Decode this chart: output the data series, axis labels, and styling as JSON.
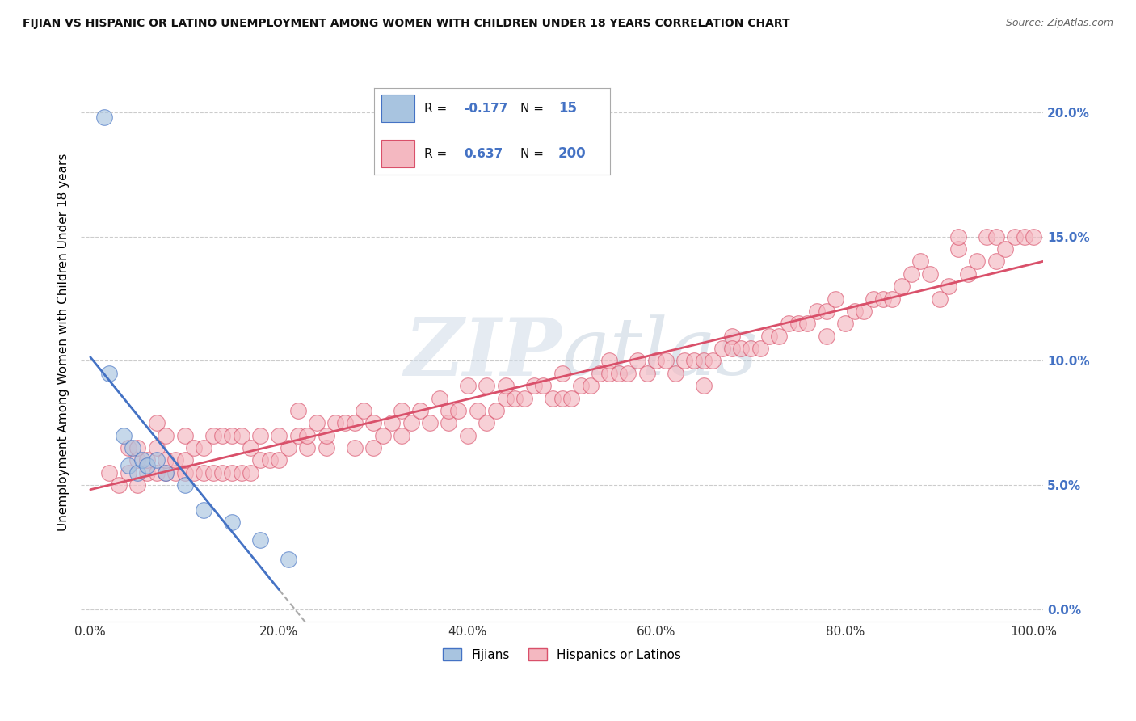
{
  "title": "FIJIAN VS HISPANIC OR LATINO UNEMPLOYMENT AMONG WOMEN WITH CHILDREN UNDER 18 YEARS CORRELATION CHART",
  "source": "Source: ZipAtlas.com",
  "ylabel": "Unemployment Among Women with Children Under 18 years",
  "xlim": [
    -1,
    101
  ],
  "ylim": [
    -0.5,
    22
  ],
  "yticks": [
    0,
    5,
    10,
    15,
    20
  ],
  "ytick_labels": [
    "0.0%",
    "5.0%",
    "10.0%",
    "15.0%",
    "20.0%"
  ],
  "xticks": [
    0,
    20,
    40,
    60,
    80,
    100
  ],
  "xtick_labels": [
    "0.0%",
    "20.0%",
    "40.0%",
    "60.0%",
    "80.0%",
    "100.0%"
  ],
  "r_fijian": "-0.177",
  "n_fijian": "15",
  "r_hispanic": "0.637",
  "n_hispanic": "200",
  "fijian_color": "#a8c4e0",
  "hispanic_color": "#f4b8c1",
  "fijian_line_color": "#4472c4",
  "hispanic_line_color": "#d9506a",
  "watermark_zip": "ZIP",
  "watermark_atlas": "atlas",
  "background_color": "#ffffff",
  "fijian_scatter_x": [
    1.5,
    2.0,
    3.5,
    4.0,
    4.5,
    5.0,
    5.5,
    6.0,
    7.0,
    8.0,
    10.0,
    12.0,
    15.0,
    18.0,
    21.0
  ],
  "fijian_scatter_y": [
    19.8,
    9.5,
    7.0,
    5.8,
    6.5,
    5.5,
    6.0,
    5.8,
    6.0,
    5.5,
    5.0,
    4.0,
    3.5,
    2.8,
    2.0
  ],
  "hispanic_scatter_x": [
    2,
    3,
    4,
    4,
    5,
    5,
    5,
    6,
    6,
    7,
    7,
    7,
    8,
    8,
    8,
    9,
    9,
    10,
    10,
    10,
    11,
    11,
    12,
    12,
    13,
    13,
    14,
    14,
    15,
    15,
    16,
    16,
    17,
    17,
    18,
    18,
    19,
    20,
    20,
    21,
    22,
    22,
    23,
    23,
    24,
    25,
    25,
    26,
    27,
    28,
    28,
    29,
    30,
    30,
    31,
    32,
    33,
    33,
    34,
    35,
    36,
    37,
    38,
    38,
    39,
    40,
    40,
    41,
    42,
    42,
    43,
    44,
    44,
    45,
    46,
    47,
    48,
    49,
    50,
    50,
    51,
    52,
    53,
    54,
    55,
    55,
    56,
    57,
    58,
    59,
    60,
    61,
    62,
    63,
    64,
    65,
    65,
    66,
    67,
    68,
    68,
    69,
    70,
    71,
    72,
    73,
    74,
    75,
    76,
    77,
    78,
    78,
    79,
    80,
    81,
    82,
    83,
    84,
    85,
    86,
    87,
    88,
    89,
    90,
    91,
    92,
    92,
    93,
    94,
    95,
    96,
    96,
    97,
    98,
    99,
    100
  ],
  "hispanic_scatter_y": [
    5.5,
    5.0,
    5.5,
    6.5,
    5.0,
    6.0,
    6.5,
    5.5,
    6.0,
    5.5,
    6.5,
    7.5,
    5.5,
    6.0,
    7.0,
    5.5,
    6.0,
    5.5,
    6.0,
    7.0,
    5.5,
    6.5,
    5.5,
    6.5,
    5.5,
    7.0,
    5.5,
    7.0,
    5.5,
    7.0,
    5.5,
    7.0,
    5.5,
    6.5,
    6.0,
    7.0,
    6.0,
    6.0,
    7.0,
    6.5,
    7.0,
    8.0,
    6.5,
    7.0,
    7.5,
    6.5,
    7.0,
    7.5,
    7.5,
    6.5,
    7.5,
    8.0,
    6.5,
    7.5,
    7.0,
    7.5,
    7.0,
    8.0,
    7.5,
    8.0,
    7.5,
    8.5,
    7.5,
    8.0,
    8.0,
    7.0,
    9.0,
    8.0,
    7.5,
    9.0,
    8.0,
    8.5,
    9.0,
    8.5,
    8.5,
    9.0,
    9.0,
    8.5,
    8.5,
    9.5,
    8.5,
    9.0,
    9.0,
    9.5,
    9.5,
    10.0,
    9.5,
    9.5,
    10.0,
    9.5,
    10.0,
    10.0,
    9.5,
    10.0,
    10.0,
    9.0,
    10.0,
    10.0,
    10.5,
    11.0,
    10.5,
    10.5,
    10.5,
    10.5,
    11.0,
    11.0,
    11.5,
    11.5,
    11.5,
    12.0,
    11.0,
    12.0,
    12.5,
    11.5,
    12.0,
    12.0,
    12.5,
    12.5,
    12.5,
    13.0,
    13.5,
    14.0,
    13.5,
    12.5,
    13.0,
    14.5,
    15.0,
    13.5,
    14.0,
    15.0,
    14.0,
    15.0,
    14.5,
    15.0,
    15.0,
    15.0
  ]
}
